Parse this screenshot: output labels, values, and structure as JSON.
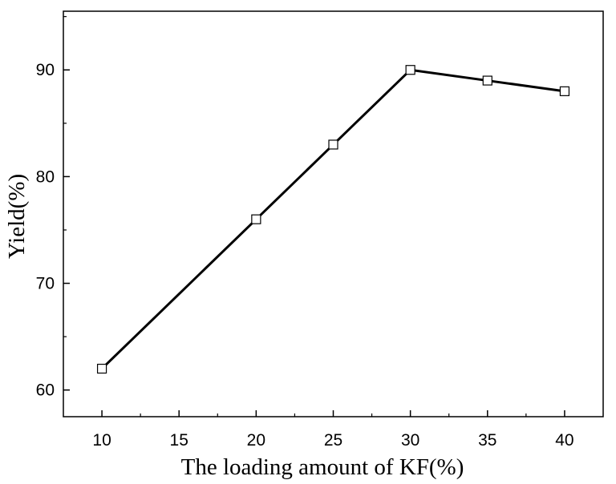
{
  "chart_data": {
    "type": "line",
    "title": "",
    "xlabel": "The loading amount of KF(%)",
    "ylabel": "Yield(%)",
    "xlim": [
      7.5,
      42.5
    ],
    "ylim": [
      57.5,
      95.5
    ],
    "x_ticks": [
      10,
      15,
      20,
      25,
      30,
      35,
      40
    ],
    "x_tick_labels": [
      "10",
      "15",
      "20",
      "25",
      "30",
      "35",
      "40"
    ],
    "y_ticks": [
      60,
      70,
      80,
      90
    ],
    "y_tick_labels": [
      "60",
      "70",
      "80",
      "90"
    ],
    "grid": false,
    "legend": "none",
    "series": [
      {
        "x": [
          10,
          20,
          25,
          30,
          35,
          40
        ],
        "values": [
          62,
          76,
          83,
          90,
          89,
          88
        ],
        "marker": "open-square",
        "color": "#000000"
      }
    ]
  }
}
